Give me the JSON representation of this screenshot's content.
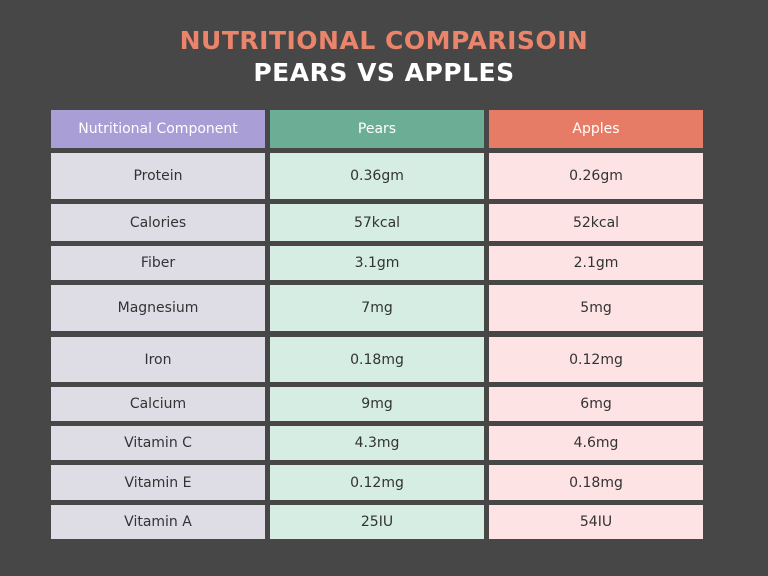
{
  "title": "NUTRITIONAL COMPARISOIN",
  "subtitle": "PEARS VS APPLES",
  "table": {
    "header": [
      "Nutritional Component",
      "Pears",
      "Apples"
    ],
    "rows": [
      [
        "Protein",
        "0.36gm",
        "0.26gm"
      ],
      [
        "Calories",
        "57kcal",
        "52kcal"
      ],
      [
        "Fiber",
        "3.1gm",
        "2.1gm"
      ],
      [
        "Magnesium",
        "7mg",
        "5mg"
      ],
      [
        "Iron",
        "0.18mg",
        "0.12mg"
      ],
      [
        "Calcium",
        "9mg",
        "6mg"
      ],
      [
        "Vitamin C",
        "4.3mg",
        "4.6mg"
      ],
      [
        "Vitamin E",
        "0.12mg",
        "0.18mg"
      ],
      [
        "Vitamin A",
        "25IU",
        "54IU"
      ]
    ]
  }
}
